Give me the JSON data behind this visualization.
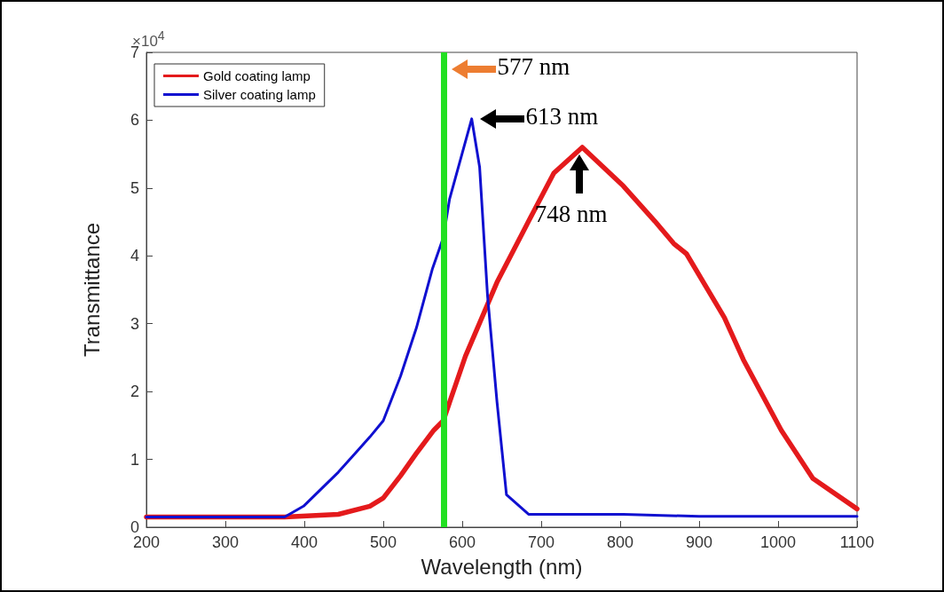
{
  "chart_data": {
    "type": "line",
    "xlabel": "Wavelength (nm)",
    "ylabel": "Transmittance",
    "xlim": [
      200,
      1100
    ],
    "xticks": [
      200,
      300,
      400,
      500,
      600,
      700,
      800,
      900,
      1000,
      1100
    ],
    "ylim": [
      0,
      7
    ],
    "yticks": [
      0,
      1,
      2,
      3,
      4,
      5,
      6,
      7
    ],
    "grid": false,
    "legend": "top left",
    "marker": "none",
    "line_style": "solid",
    "series": [
      {
        "name": "Gold coating lamp",
        "color": "#e41a1c",
        "x": [
          200,
          300,
          375,
          443,
          483,
          500,
          522,
          542,
          564,
          576,
          604,
          644,
          684,
          716,
          752,
          804,
          844,
          868,
          884,
          932,
          956,
          1004,
          1044,
          1100
        ],
        "values": [
          0.15,
          0.15,
          0.15,
          0.19,
          0.31,
          0.43,
          0.76,
          1.09,
          1.43,
          1.57,
          2.52,
          3.61,
          4.51,
          5.22,
          5.6,
          5.03,
          4.51,
          4.18,
          4.03,
          3.09,
          2.47,
          1.43,
          0.72,
          0.27
        ]
      },
      {
        "name": "Silver coating lamp",
        "color": "#1010d0",
        "x": [
          200,
          300,
          375,
          399,
          443,
          483,
          500,
          522,
          542,
          562,
          576,
          584,
          612,
          622,
          632,
          644,
          656,
          684,
          804,
          900,
          1100
        ],
        "values": [
          0.15,
          0.15,
          0.15,
          0.31,
          0.81,
          1.33,
          1.57,
          2.23,
          2.94,
          3.8,
          4.27,
          4.84,
          6.02,
          5.31,
          3.42,
          1.85,
          0.48,
          0.19,
          0.19,
          0.16,
          0.16
        ]
      }
    ],
    "ref_lines": [
      {
        "axis": "x",
        "value": 577,
        "color": "#22e022"
      }
    ],
    "annotations": [
      "×10$^{4}$",
      {
        "text": "577 nm",
        "x": 577,
        "y": 6.75
      },
      {
        "text": "613 nm",
        "x": 613,
        "y": 6.02
      },
      {
        "text": "748 nm",
        "x": 748,
        "y": 5.6
      }
    ]
  }
}
